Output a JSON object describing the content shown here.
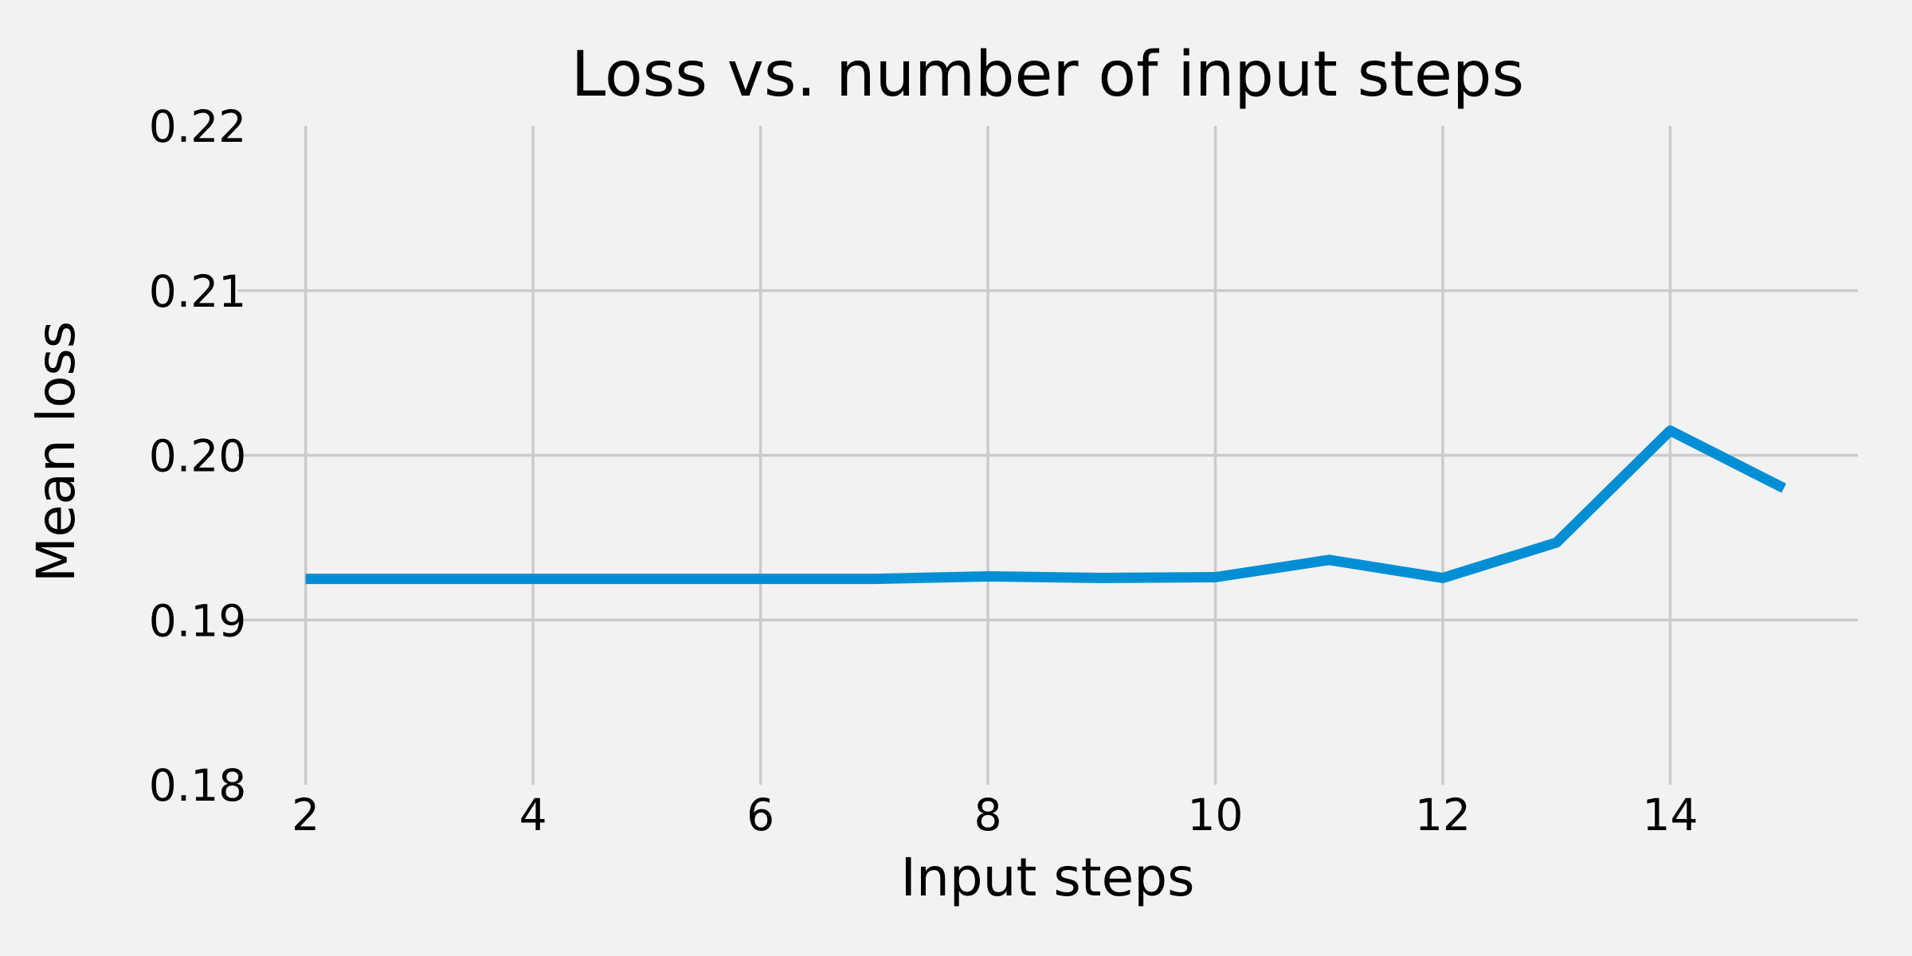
{
  "chart_data": {
    "type": "line",
    "title": "Loss vs. number of input steps",
    "xlabel": "Input steps",
    "ylabel": "Mean loss",
    "xlim": [
      1.4,
      15.65
    ],
    "ylim": [
      0.18,
      0.22
    ],
    "xticks": [
      2,
      4,
      6,
      8,
      10,
      12,
      14
    ],
    "xtick_labels": [
      "2",
      "4",
      "6",
      "8",
      "10",
      "12",
      "14"
    ],
    "yticks": [
      0.18,
      0.19,
      0.2,
      0.21,
      0.22
    ],
    "ytick_labels": [
      "0.18",
      "0.19",
      "0.20",
      "0.21",
      "0.22"
    ],
    "grid": true,
    "series": [
      {
        "color": "#008fd5",
        "x": [
          2,
          3,
          4,
          5,
          6,
          7,
          8,
          9,
          10,
          11,
          12,
          13,
          14,
          15
        ],
        "y": [
          0.1925,
          0.1925,
          0.1925,
          0.1925,
          0.1925,
          0.1925,
          0.19265,
          0.19255,
          0.1926,
          0.19365,
          0.19255,
          0.1947,
          0.2015,
          0.198
        ]
      }
    ]
  }
}
